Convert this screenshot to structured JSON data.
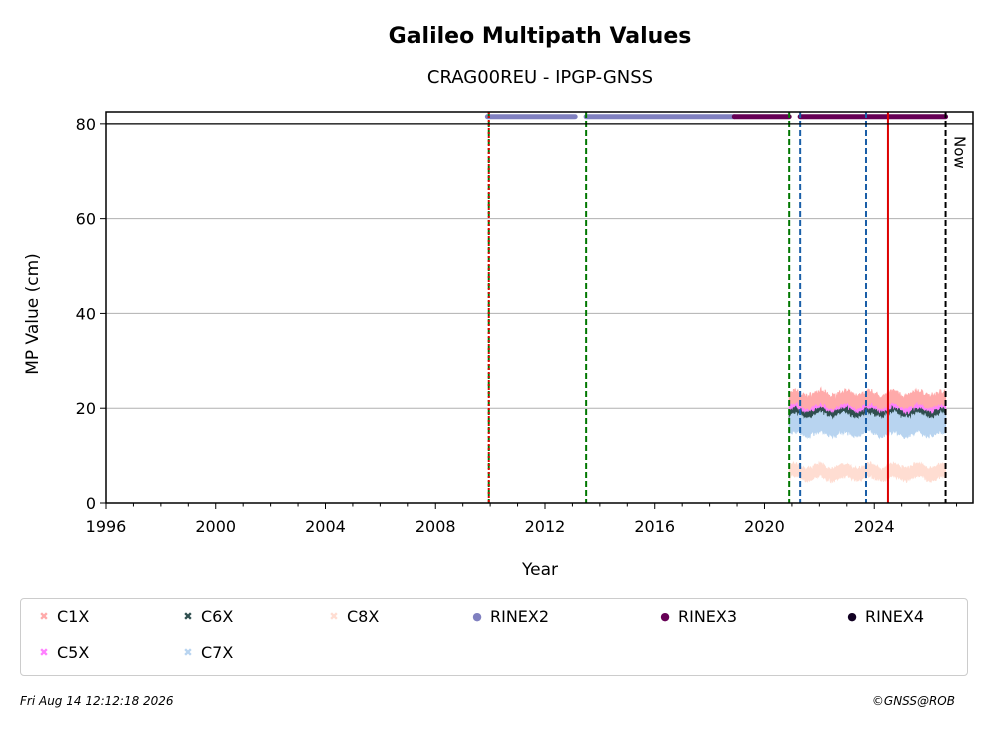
{
  "chart_data": {
    "type": "scatter",
    "title": "Galileo Multipath Values",
    "subtitle": "CRAG00REU - IPGP-GNSS",
    "xlabel": "Year",
    "ylabel": "MP Value (cm)",
    "xlim": [
      1996,
      2027.6
    ],
    "ylim": [
      0,
      82.5
    ],
    "xticks": [
      "1996",
      "2000",
      "2004",
      "2008",
      "2012",
      "2016",
      "2020",
      "2024"
    ],
    "yticks": [
      "0",
      "20",
      "40",
      "60",
      "80"
    ],
    "grid": "horizontal",
    "now_label": "Now",
    "now_x": 2026.6,
    "series": [
      {
        "name": "C1X",
        "color": "#ffaaaa",
        "marker": "x",
        "x_range": [
          2020.9,
          2026.6
        ],
        "level": 21.0,
        "spread": 2.2
      },
      {
        "name": "C5X",
        "color": "#ff80ff",
        "marker": "x",
        "x_range": [
          2020.9,
          2026.6
        ],
        "level": 19.0,
        "spread": 1.2
      },
      {
        "name": "C6X",
        "color": "#2f4f4f",
        "marker": "x",
        "x_range": [
          2020.9,
          2026.6
        ],
        "level": 18.0,
        "spread": 1.5
      },
      {
        "name": "C7X",
        "color": "#b8d4f0",
        "marker": "x",
        "x_range": [
          2020.9,
          2026.6
        ],
        "level": 16.5,
        "spread": 2.0
      },
      {
        "name": "C8X",
        "color": "#ffddd2",
        "marker": "x",
        "x_range": [
          2020.9,
          2026.6
        ],
        "level": 6.5,
        "spread": 1.3
      },
      {
        "name": "RINEX2",
        "color": "#8080c0",
        "marker": "o",
        "segments": [
          [
            2009.9,
            2013.1
          ],
          [
            2013.5,
            2018.9
          ]
        ],
        "level": 81.5
      },
      {
        "name": "RINEX3",
        "color": "#660055",
        "marker": "o",
        "segments": [
          [
            2018.9,
            2020.9
          ],
          [
            2021.3,
            2026.6
          ]
        ],
        "level": 81.5
      },
      {
        "name": "RINEX4",
        "color": "#110022",
        "marker": "o",
        "segments": [],
        "level": 81.5
      }
    ],
    "vlines": [
      {
        "x": 2009.95,
        "color": "#007700",
        "style": "dashed"
      },
      {
        "x": 2009.95,
        "color": "#dd0000",
        "style": "dotted"
      },
      {
        "x": 2013.5,
        "color": "#007700",
        "style": "dashed"
      },
      {
        "x": 2020.9,
        "color": "#007700",
        "style": "dashed"
      },
      {
        "x": 2021.3,
        "color": "#1a5fa8",
        "style": "dashed"
      },
      {
        "x": 2023.7,
        "color": "#1a5fa8",
        "style": "dashed"
      },
      {
        "x": 2024.5,
        "color": "#dd0000",
        "style": "solid"
      },
      {
        "x": 2026.6,
        "color": "#000000",
        "style": "dashed"
      }
    ]
  },
  "footer": {
    "timestamp": "Fri Aug 14 12:12:18 2026",
    "credit": "©GNSS@ROB"
  }
}
